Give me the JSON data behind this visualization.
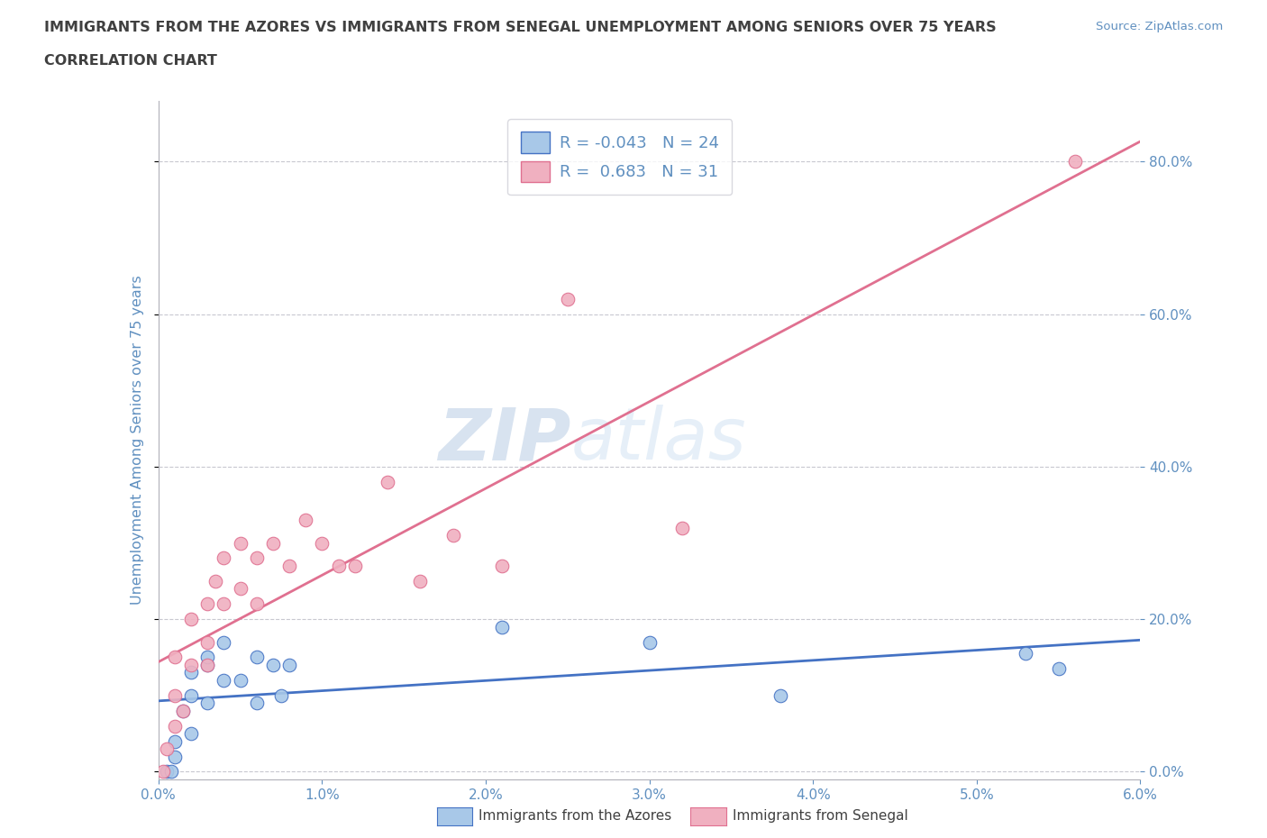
{
  "title_line1": "IMMIGRANTS FROM THE AZORES VS IMMIGRANTS FROM SENEGAL UNEMPLOYMENT AMONG SENIORS OVER 75 YEARS",
  "title_line2": "CORRELATION CHART",
  "source": "Source: ZipAtlas.com",
  "xlabel": "",
  "ylabel": "Unemployment Among Seniors over 75 years",
  "xlim": [
    0.0,
    0.06
  ],
  "ylim": [
    -0.01,
    0.88
  ],
  "xticks": [
    0.0,
    0.01,
    0.02,
    0.03,
    0.04,
    0.05,
    0.06
  ],
  "yticks": [
    0.0,
    0.2,
    0.4,
    0.6,
    0.8
  ],
  "azores_color": "#a8c8e8",
  "senegal_color": "#f0b0c0",
  "azores_line_color": "#4472c4",
  "senegal_line_color": "#e07090",
  "legend_azores_label": "Immigrants from the Azores",
  "legend_senegal_label": "Immigrants from Senegal",
  "R_azores": -0.043,
  "N_azores": 24,
  "R_senegal": 0.683,
  "N_senegal": 31,
  "azores_x": [
    0.0005,
    0.0008,
    0.001,
    0.001,
    0.0015,
    0.002,
    0.002,
    0.002,
    0.003,
    0.003,
    0.003,
    0.004,
    0.004,
    0.005,
    0.006,
    0.006,
    0.007,
    0.0075,
    0.008,
    0.021,
    0.03,
    0.038,
    0.053,
    0.055
  ],
  "azores_y": [
    0.0,
    0.0,
    0.02,
    0.04,
    0.08,
    0.05,
    0.1,
    0.13,
    0.09,
    0.14,
    0.15,
    0.12,
    0.17,
    0.12,
    0.09,
    0.15,
    0.14,
    0.1,
    0.14,
    0.19,
    0.17,
    0.1,
    0.155,
    0.135
  ],
  "senegal_x": [
    0.0003,
    0.0005,
    0.001,
    0.001,
    0.001,
    0.0015,
    0.002,
    0.002,
    0.003,
    0.003,
    0.003,
    0.0035,
    0.004,
    0.004,
    0.005,
    0.005,
    0.006,
    0.006,
    0.007,
    0.008,
    0.009,
    0.01,
    0.011,
    0.012,
    0.014,
    0.016,
    0.018,
    0.021,
    0.025,
    0.032,
    0.056
  ],
  "senegal_y": [
    0.0,
    0.03,
    0.06,
    0.1,
    0.15,
    0.08,
    0.14,
    0.2,
    0.14,
    0.17,
    0.22,
    0.25,
    0.22,
    0.28,
    0.24,
    0.3,
    0.22,
    0.28,
    0.3,
    0.27,
    0.33,
    0.3,
    0.27,
    0.27,
    0.38,
    0.25,
    0.31,
    0.27,
    0.62,
    0.32,
    0.8
  ],
  "watermark_zip": "ZIP",
  "watermark_atlas": "atlas",
  "background_color": "#ffffff",
  "grid_color": "#c8c8d0",
  "title_color": "#404040",
  "axis_label_color": "#6090c0",
  "tick_label_color": "#6090c0"
}
